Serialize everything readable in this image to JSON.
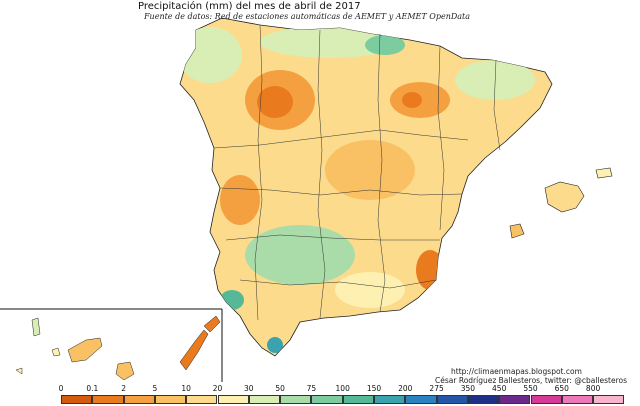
{
  "title": "Precipitación (mm) del mes de abril  de 2017",
  "source": "Fuente de datos: Red de estaciones automáticas de AEMET y AEMET OpenData",
  "credits": {
    "url": "http://climaenmapas.blogspot.com",
    "author": "César Rodríguez Ballesteros, twitter: @cballesteros"
  },
  "legend": {
    "ticks": [
      "0",
      "0.1",
      "2",
      "5",
      "10",
      "20",
      "30",
      "50",
      "75",
      "100",
      "150",
      "200",
      "275",
      "350",
      "450",
      "550",
      "650",
      "800"
    ],
    "colors": [
      "#d45a0c",
      "#ea7a1e",
      "#f5a040",
      "#f9c064",
      "#fcdc8c",
      "#fdf0b0",
      "#d8eeb4",
      "#aadcaa",
      "#7ccca0",
      "#55b896",
      "#3aa3ae",
      "#2a82c0",
      "#2456a8",
      "#1f2e86",
      "#6a2a8a",
      "#d43a96",
      "#ec7ab8",
      "#f8b4cc"
    ]
  },
  "colors": {
    "dry": "#f5a040",
    "very_dry": "#ea7a1e",
    "moderate": "#fcdc8c",
    "light": "#fdf0b0",
    "wet": "#aadcaa",
    "very_wet": "#7ccca0",
    "border": "#222222"
  }
}
